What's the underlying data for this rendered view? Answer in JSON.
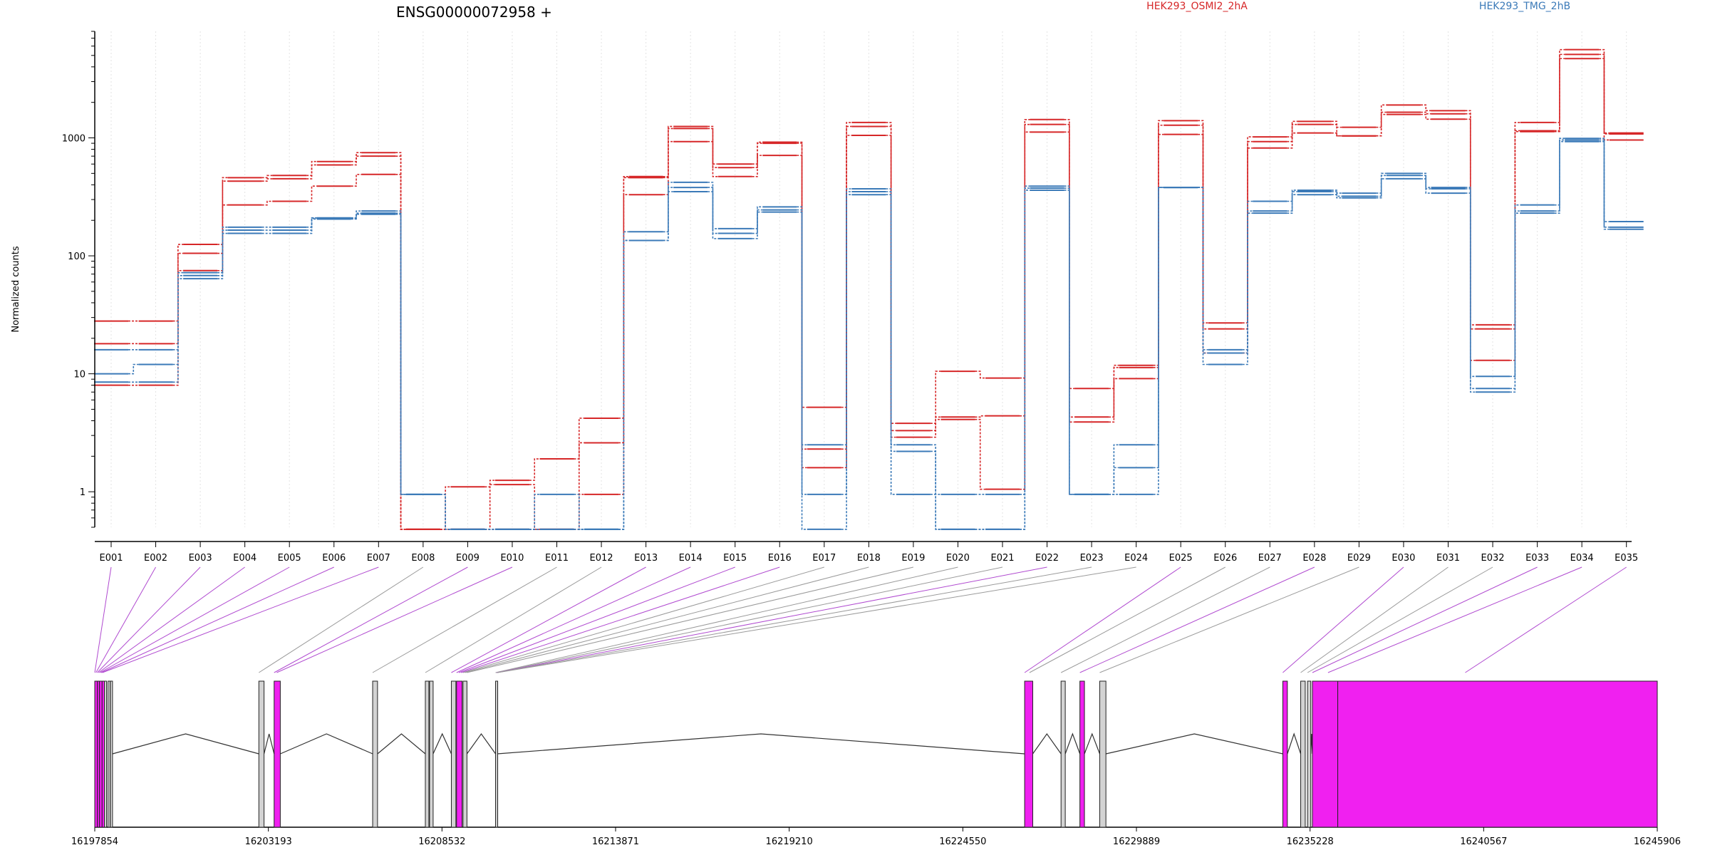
{
  "chart_data": {
    "type": "line",
    "title": "ENSG00000072958 +",
    "ylabel": "Normalized counts",
    "xlabel": "",
    "y_scale": "log",
    "ylim": [
      0.5,
      8000
    ],
    "yticks": [
      {
        "value": 1,
        "label": "1"
      },
      {
        "value": 10,
        "label": "10"
      },
      {
        "value": 100,
        "label": "100"
      },
      {
        "value": 1000,
        "label": "1000"
      }
    ],
    "grid": "vertical",
    "categories": [
      "E001",
      "E002",
      "E003",
      "E004",
      "E005",
      "E006",
      "E007",
      "E008",
      "E009",
      "E010",
      "E011",
      "E012",
      "E013",
      "E014",
      "E015",
      "E016",
      "E017",
      "E018",
      "E019",
      "E020",
      "E021",
      "E022",
      "E023",
      "E024",
      "E025",
      "E026",
      "E027",
      "E028",
      "E029",
      "E030",
      "E031",
      "E032",
      "E033",
      "E034",
      "E035"
    ],
    "legend": [
      {
        "label": "HEK293_OSMI2_2hA",
        "color": "#d62728"
      },
      {
        "label": "HEK293_TMG_2hB",
        "color": "#3b7ab8"
      }
    ],
    "series": [
      {
        "group": "HEK293_OSMI2_2hA",
        "color": "#d62728",
        "values": [
          28,
          28,
          125,
          460,
          480,
          630,
          750,
          0.48,
          1.1,
          1.25,
          1.9,
          4.2,
          470,
          1250,
          600,
          920,
          5.2,
          1350,
          3.8,
          10.5,
          9.2,
          1430,
          7.5,
          11.8,
          1400,
          27,
          1020,
          1380,
          1230,
          1900,
          1700,
          26,
          1350,
          5600,
          1100
        ]
      },
      {
        "group": "HEK293_OSMI2_2hA",
        "color": "#d62728",
        "values": [
          18,
          18,
          105,
          430,
          450,
          590,
          700,
          0.48,
          0.48,
          1.15,
          0.48,
          2.6,
          460,
          1200,
          560,
          900,
          2.3,
          1250,
          3.3,
          4.3,
          4.4,
          1300,
          4.3,
          11.3,
          1280,
          24,
          930,
          1300,
          1040,
          1650,
          1600,
          24,
          1150,
          5100,
          1080
        ]
      },
      {
        "group": "HEK293_OSMI2_2hA",
        "color": "#d62728",
        "values": [
          8,
          8,
          75,
          270,
          290,
          390,
          490,
          0.48,
          0.48,
          0.48,
          0.48,
          0.95,
          330,
          930,
          470,
          710,
          1.6,
          1050,
          2.9,
          4.1,
          1.05,
          1120,
          3.9,
          9.1,
          1070,
          15,
          820,
          1100,
          1040,
          1580,
          1440,
          13,
          1130,
          4700,
          960
        ]
      },
      {
        "group": "HEK293_TMG_2hB",
        "color": "#3b7ab8",
        "values": [
          16,
          16,
          72,
          175,
          175,
          210,
          240,
          0.95,
          0.48,
          0.48,
          0.95,
          0.48,
          160,
          420,
          170,
          260,
          2.5,
          370,
          2.5,
          0.95,
          0.95,
          390,
          0.95,
          2.5,
          380,
          16,
          290,
          360,
          340,
          500,
          380,
          9.5,
          270,
          990,
          195
        ]
      },
      {
        "group": "HEK293_TMG_2hB",
        "color": "#3b7ab8",
        "values": [
          10,
          12,
          68,
          165,
          165,
          208,
          230,
          0.95,
          0.48,
          0.48,
          0.48,
          0.48,
          135,
          380,
          155,
          245,
          0.95,
          350,
          2.2,
          0.48,
          0.48,
          375,
          0.95,
          1.6,
          380,
          15,
          240,
          350,
          320,
          480,
          370,
          7.5,
          240,
          960,
          175
        ]
      },
      {
        "group": "HEK293_TMG_2hB",
        "color": "#3b7ab8",
        "values": [
          8.5,
          8.5,
          64,
          155,
          155,
          205,
          225,
          0.95,
          0.48,
          0.48,
          0.48,
          0.48,
          135,
          350,
          140,
          235,
          0.48,
          330,
          0.95,
          0.48,
          0.48,
          360,
          0.95,
          0.95,
          380,
          12,
          230,
          330,
          310,
          450,
          340,
          7,
          230,
          930,
          168
        ]
      }
    ],
    "gene_model": {
      "coordinate_ticks": [
        "16197854",
        "16203193",
        "16208532",
        "16213871",
        "16219210",
        "16224550",
        "16229889",
        "16235228",
        "16240567",
        "16245906"
      ],
      "coord_range": [
        16197854,
        16245906
      ],
      "exons": [
        {
          "start": 16197854,
          "end": 16197935,
          "highlighted": true
        },
        {
          "start": 16197935,
          "end": 16198000,
          "highlighted": true
        },
        {
          "start": 16198000,
          "end": 16198080,
          "highlighted": true
        },
        {
          "start": 16198080,
          "end": 16198150,
          "highlighted": true
        },
        {
          "start": 16198150,
          "end": 16198200,
          "highlighted": false
        },
        {
          "start": 16198260,
          "end": 16198310,
          "highlighted": false
        },
        {
          "start": 16198330,
          "end": 16198400,
          "highlighted": false
        },
        {
          "start": 16202900,
          "end": 16203060,
          "highlighted": false
        },
        {
          "start": 16203370,
          "end": 16203560,
          "highlighted": true
        },
        {
          "start": 16206400,
          "end": 16206550,
          "highlighted": false
        },
        {
          "start": 16208020,
          "end": 16208130,
          "highlighted": false
        },
        {
          "start": 16208150,
          "end": 16208260,
          "highlighted": false
        },
        {
          "start": 16208820,
          "end": 16208960,
          "highlighted": false
        },
        {
          "start": 16208980,
          "end": 16209150,
          "highlighted": true
        },
        {
          "start": 16209180,
          "end": 16209300,
          "highlighted": false
        },
        {
          "start": 16210180,
          "end": 16210230,
          "highlighted": false
        },
        {
          "start": 16226450,
          "end": 16226700,
          "highlighted": true
        },
        {
          "start": 16227570,
          "end": 16227700,
          "highlighted": false
        },
        {
          "start": 16228150,
          "end": 16228290,
          "highlighted": true
        },
        {
          "start": 16228760,
          "end": 16228950,
          "highlighted": false
        },
        {
          "start": 16234390,
          "end": 16234530,
          "highlighted": true
        },
        {
          "start": 16234940,
          "end": 16235080,
          "highlighted": false
        },
        {
          "start": 16235150,
          "end": 16235250,
          "highlighted": false
        },
        {
          "start": 16235300,
          "end": 16236080,
          "highlighted": true
        },
        {
          "start": 16236080,
          "end": 16245906,
          "highlighted": true
        }
      ],
      "introns": [
        [
          16198400,
          16202900
        ],
        [
          16203060,
          16203370
        ],
        [
          16203560,
          16206400
        ],
        [
          16206550,
          16208020
        ],
        [
          16208260,
          16208820
        ],
        [
          16209300,
          16210180
        ],
        [
          16210230,
          16226450
        ],
        [
          16226700,
          16227570
        ],
        [
          16227700,
          16228150
        ],
        [
          16228290,
          16228760
        ],
        [
          16228950,
          16234390
        ],
        [
          16234530,
          16234940
        ],
        [
          16235250,
          16235300
        ]
      ],
      "bin_links": [
        {
          "exon": "E001",
          "coord": 16197854,
          "highlighted": true
        },
        {
          "exon": "E002",
          "coord": 16197890,
          "highlighted": true
        },
        {
          "exon": "E003",
          "coord": 16197930,
          "highlighted": true
        },
        {
          "exon": "E004",
          "coord": 16197970,
          "highlighted": true
        },
        {
          "exon": "E005",
          "coord": 16198010,
          "highlighted": true
        },
        {
          "exon": "E006",
          "coord": 16198050,
          "highlighted": true
        },
        {
          "exon": "E007",
          "coord": 16198090,
          "highlighted": true
        },
        {
          "exon": "E008",
          "coord": 16202900,
          "highlighted": false
        },
        {
          "exon": "E009",
          "coord": 16203370,
          "highlighted": true
        },
        {
          "exon": "E010",
          "coord": 16203450,
          "highlighted": true
        },
        {
          "exon": "E011",
          "coord": 16206400,
          "highlighted": false
        },
        {
          "exon": "E012",
          "coord": 16208020,
          "highlighted": false
        },
        {
          "exon": "E013",
          "coord": 16208820,
          "highlighted": true
        },
        {
          "exon": "E014",
          "coord": 16208980,
          "highlighted": true
        },
        {
          "exon": "E015",
          "coord": 16209050,
          "highlighted": true
        },
        {
          "exon": "E016",
          "coord": 16209120,
          "highlighted": true
        },
        {
          "exon": "E017",
          "coord": 16209180,
          "highlighted": false
        },
        {
          "exon": "E018",
          "coord": 16209240,
          "highlighted": false
        },
        {
          "exon": "E019",
          "coord": 16209300,
          "highlighted": false
        },
        {
          "exon": "E020",
          "coord": 16210180,
          "highlighted": false
        },
        {
          "exon": "E021",
          "coord": 16210200,
          "highlighted": false
        },
        {
          "exon": "E022",
          "coord": 16210220,
          "highlighted": true
        },
        {
          "exon": "E023",
          "coord": 16210230,
          "highlighted": false
        },
        {
          "exon": "E024",
          "coord": 16210240,
          "highlighted": false
        },
        {
          "exon": "E025",
          "coord": 16226450,
          "highlighted": true
        },
        {
          "exon": "E026",
          "coord": 16226600,
          "highlighted": false
        },
        {
          "exon": "E027",
          "coord": 16227570,
          "highlighted": false
        },
        {
          "exon": "E028",
          "coord": 16228150,
          "highlighted": true
        },
        {
          "exon": "E029",
          "coord": 16228760,
          "highlighted": false
        },
        {
          "exon": "E030",
          "coord": 16234390,
          "highlighted": true
        },
        {
          "exon": "E031",
          "coord": 16234940,
          "highlighted": false
        },
        {
          "exon": "E032",
          "coord": 16235150,
          "highlighted": false
        },
        {
          "exon": "E033",
          "coord": 16235300,
          "highlighted": true
        },
        {
          "exon": "E034",
          "coord": 16235780,
          "highlighted": true
        },
        {
          "exon": "E035",
          "coord": 16240000,
          "highlighted": true
        }
      ]
    }
  },
  "colors": {
    "series_a": "#d62728",
    "series_b": "#3b7ab8",
    "exon_highlight": "#f020f0",
    "exon_plain": "#d3d3d3",
    "link_highlight": "#b04ad0",
    "link_plain": "#9a9a9a",
    "grid": "#e3e3e3"
  }
}
